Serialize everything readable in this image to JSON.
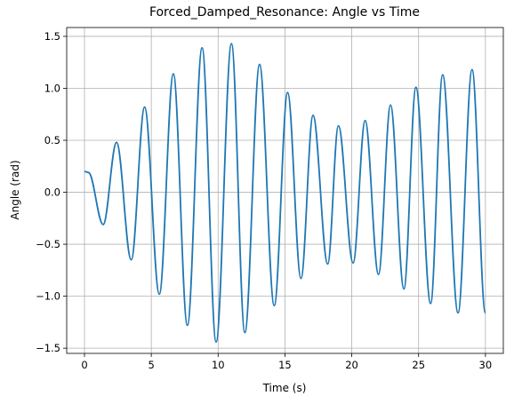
{
  "chart_data": {
    "type": "line",
    "title": "Forced_Damped_Resonance: Angle vs Time",
    "xlabel": "Time (s)",
    "ylabel": "Angle (rad)",
    "x": [
      0,
      0.3,
      1.4,
      2.4,
      3.5,
      4.5,
      5.6,
      6.65,
      7.7,
      8.8,
      9.85,
      11.0,
      12.0,
      13.1,
      14.2,
      15.2,
      16.2,
      17.1,
      18.2,
      19.0,
      20.1,
      21.0,
      22.0,
      22.9,
      23.9,
      24.8,
      25.9,
      26.8,
      27.95,
      29.0,
      30
    ],
    "series": [
      {
        "name": "Angle",
        "color": "#1f77b4",
        "values": [
          0.2,
          0.19,
          -0.31,
          0.48,
          -0.65,
          0.82,
          -0.98,
          1.14,
          -1.28,
          1.39,
          -1.44,
          1.43,
          -1.35,
          1.23,
          -1.09,
          0.96,
          -0.83,
          0.74,
          -0.69,
          0.64,
          -0.68,
          0.69,
          -0.79,
          0.84,
          -0.93,
          1.01,
          -1.07,
          1.13,
          -1.16,
          1.18,
          -1.16
        ]
      }
    ],
    "xlim": [
      -1.33,
      31.34
    ],
    "ylim": [
      -1.55,
      1.585
    ],
    "xticks": [
      0,
      5,
      10,
      15,
      20,
      25,
      30
    ],
    "yticks": [
      {
        "value": -1.5,
        "label": "−1.5"
      },
      {
        "value": -1.0,
        "label": "−1.0"
      },
      {
        "value": -0.5,
        "label": "−0.5"
      },
      {
        "value": 0,
        "label": "0.0"
      },
      0.5,
      {
        "value": 1.0,
        "label": "1.0"
      },
      1.5
    ],
    "grid": true
  }
}
